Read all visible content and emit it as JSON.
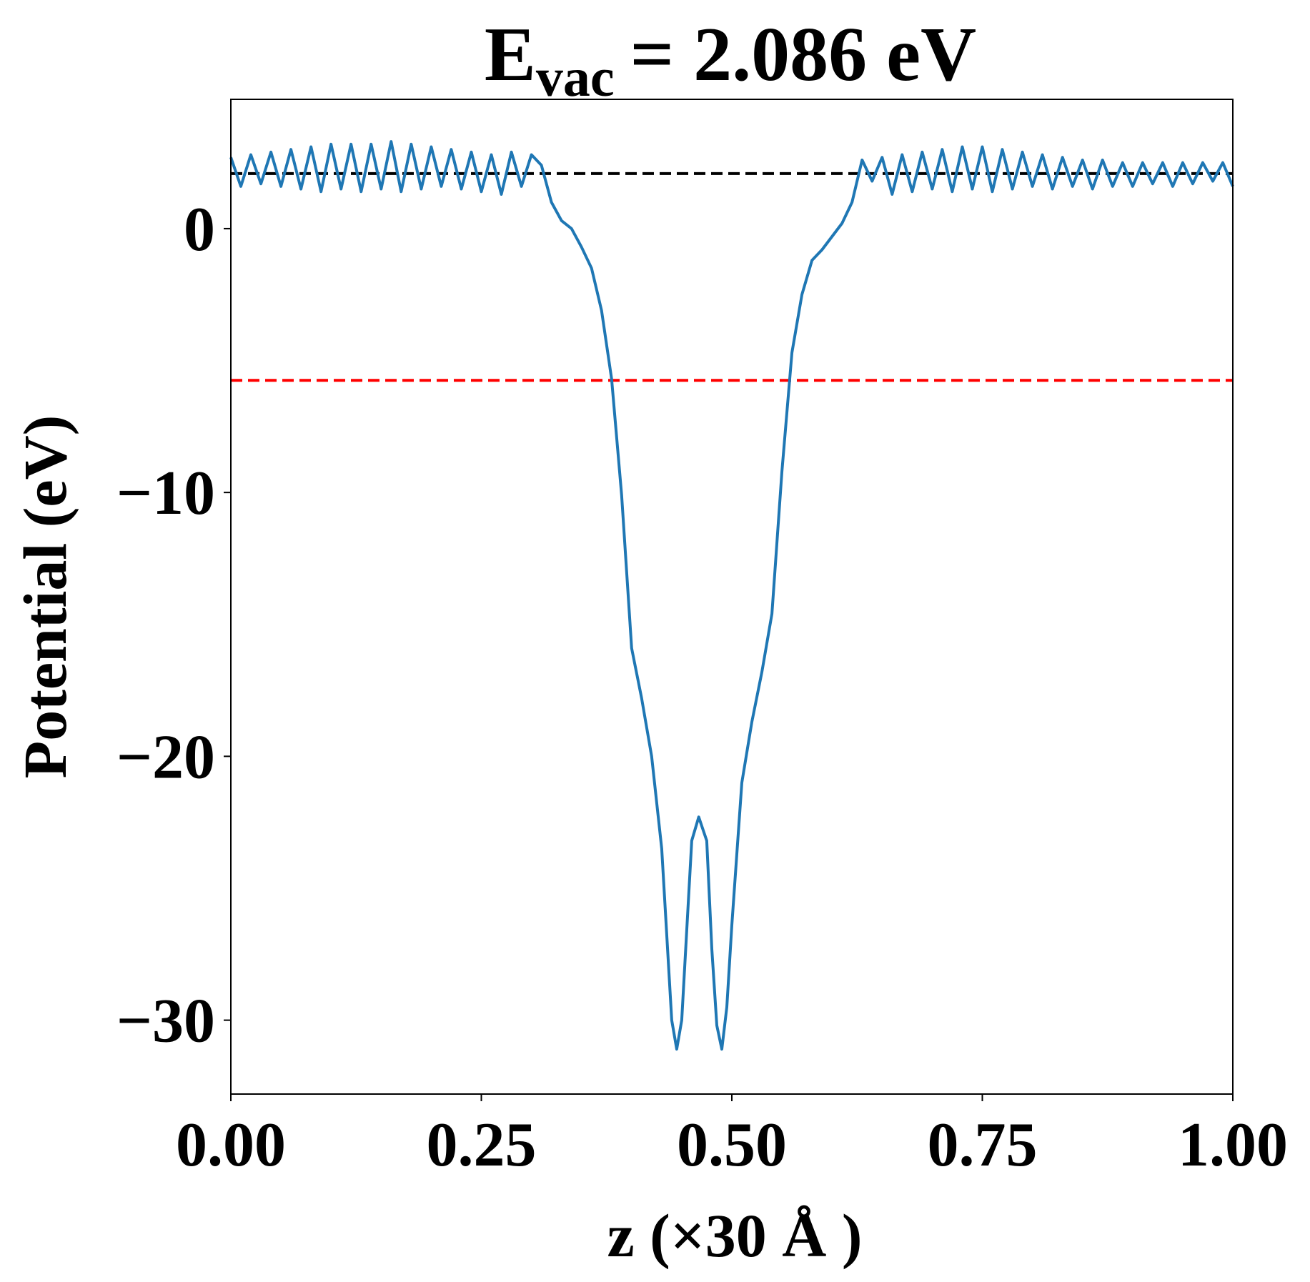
{
  "chart_data": {
    "type": "line",
    "title": {
      "main": "E",
      "sub": "vac",
      "rest": "= 2.086 eV"
    },
    "x_label": "z (×30 Å )",
    "y_label": "Potential (eV)",
    "xlim": [
      0,
      1
    ],
    "ylim": [
      -32.8,
      4.9
    ],
    "xticks": [
      {
        "value": 0,
        "label": "0.00"
      },
      {
        "value": 0.25,
        "label": "0.25"
      },
      {
        "value": 0.5,
        "label": "0.50"
      },
      {
        "value": 0.75,
        "label": "0.75"
      },
      {
        "value": 1,
        "label": "1.00"
      }
    ],
    "yticks": [
      {
        "value": -30,
        "label": "−30"
      },
      {
        "value": -20,
        "label": "−20"
      },
      {
        "value": -10,
        "label": "−10"
      },
      0
    ],
    "hlines": [
      {
        "value": 2.086,
        "color": "#000000"
      },
      {
        "value": -5.75,
        "color": "#ff0000"
      }
    ],
    "series": [
      {
        "color": "#1f77b4",
        "x": [
          0,
          0.01,
          0.02,
          0.03,
          0.04,
          0.05,
          0.06,
          0.07,
          0.08,
          0.09,
          0.1,
          0.11,
          0.12,
          0.13,
          0.14,
          0.15,
          0.16,
          0.17,
          0.18,
          0.19,
          0.2,
          0.21,
          0.22,
          0.23,
          0.24,
          0.25,
          0.26,
          0.27,
          0.28,
          0.29,
          0.3,
          0.31,
          0.32,
          0.33,
          0.34,
          0.35,
          0.36,
          0.37,
          0.38,
          0.39,
          0.4,
          0.41,
          0.42,
          0.43,
          0.44,
          0.445,
          0.45,
          0.46,
          0.467,
          0.475,
          0.48,
          0.485,
          0.49,
          0.495,
          0.5,
          0.51,
          0.52,
          0.53,
          0.54,
          0.55,
          0.56,
          0.57,
          0.58,
          0.59,
          0.6,
          0.61,
          0.62,
          0.63,
          0.64,
          0.65,
          0.66,
          0.67,
          0.68,
          0.69,
          0.7,
          0.71,
          0.72,
          0.73,
          0.74,
          0.75,
          0.76,
          0.77,
          0.78,
          0.79,
          0.8,
          0.81,
          0.82,
          0.83,
          0.84,
          0.85,
          0.86,
          0.87,
          0.88,
          0.89,
          0.9,
          0.91,
          0.92,
          0.93,
          0.94,
          0.95,
          0.96,
          0.97,
          0.98,
          0.99,
          1
        ],
        "values": [
          2.7,
          1.6,
          2.8,
          1.7,
          2.9,
          1.6,
          3.0,
          1.5,
          3.1,
          1.4,
          3.2,
          1.5,
          3.2,
          1.4,
          3.2,
          1.5,
          3.3,
          1.4,
          3.2,
          1.5,
          3.1,
          1.6,
          3.0,
          1.5,
          2.9,
          1.4,
          2.8,
          1.3,
          2.9,
          1.6,
          2.8,
          2.4,
          1.0,
          0.3,
          0.0,
          -0.7,
          -1.5,
          -3.1,
          -5.7,
          -10.1,
          -15.9,
          -17.8,
          -20.0,
          -23.5,
          -30.0,
          -31.1,
          -30.0,
          -23.2,
          -22.3,
          -23.2,
          -27.3,
          -30.2,
          -31.1,
          -29.5,
          -26.4,
          -21.0,
          -18.7,
          -16.8,
          -14.6,
          -9.2,
          -4.7,
          -2.5,
          -1.2,
          -0.8,
          -0.3,
          0.2,
          1.0,
          2.6,
          1.8,
          2.7,
          1.3,
          2.8,
          1.4,
          2.9,
          1.5,
          3.0,
          1.4,
          3.1,
          1.5,
          3.1,
          1.4,
          3.0,
          1.5,
          2.9,
          1.6,
          2.8,
          1.5,
          2.7,
          1.6,
          2.6,
          1.5,
          2.6,
          1.6,
          2.5,
          1.6,
          2.5,
          1.7,
          2.5,
          1.6,
          2.5,
          1.7,
          2.5,
          1.8,
          2.5,
          1.6
        ]
      }
    ]
  }
}
